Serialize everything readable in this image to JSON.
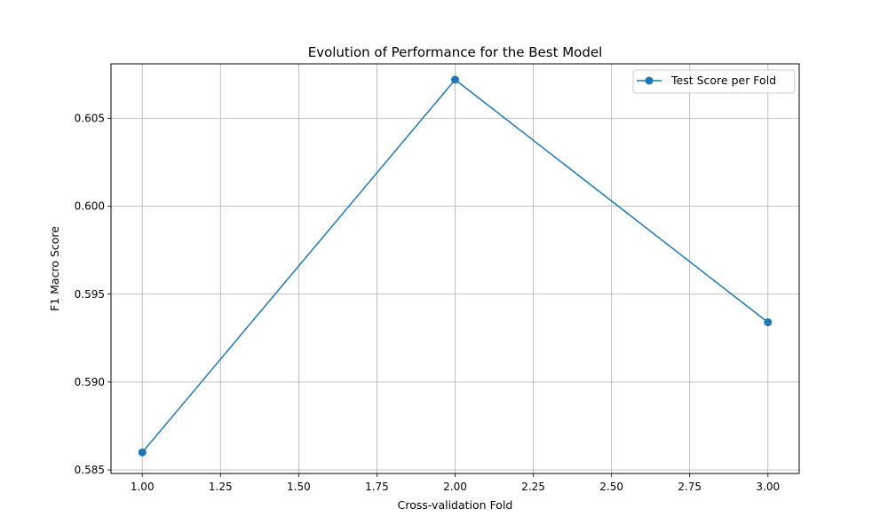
{
  "chart_data": {
    "type": "line",
    "title": "Evolution of Performance for the Best Model",
    "xlabel": "Cross-validation Fold",
    "ylabel": "F1 Macro Score",
    "xlim": [
      0.9,
      3.1
    ],
    "ylim": [
      0.5848,
      0.6081
    ],
    "x_ticks": [
      1.0,
      1.25,
      1.5,
      1.75,
      2.0,
      2.25,
      2.5,
      2.75,
      3.0
    ],
    "x_tick_labels": [
      "1.00",
      "1.25",
      "1.50",
      "1.75",
      "2.00",
      "2.25",
      "2.50",
      "2.75",
      "3.00"
    ],
    "y_ticks": [
      0.585,
      0.59,
      0.595,
      0.6,
      0.605
    ],
    "y_tick_labels": [
      "0.585",
      "0.590",
      "0.595",
      "0.600",
      "0.605"
    ],
    "grid": true,
    "legend_position": "top-right",
    "series": [
      {
        "name": "Test Score per Fold",
        "color": "#1f77b4",
        "marker": "circle",
        "x": [
          1,
          2,
          3
        ],
        "y": [
          0.586,
          0.6072,
          0.5934
        ]
      }
    ]
  }
}
